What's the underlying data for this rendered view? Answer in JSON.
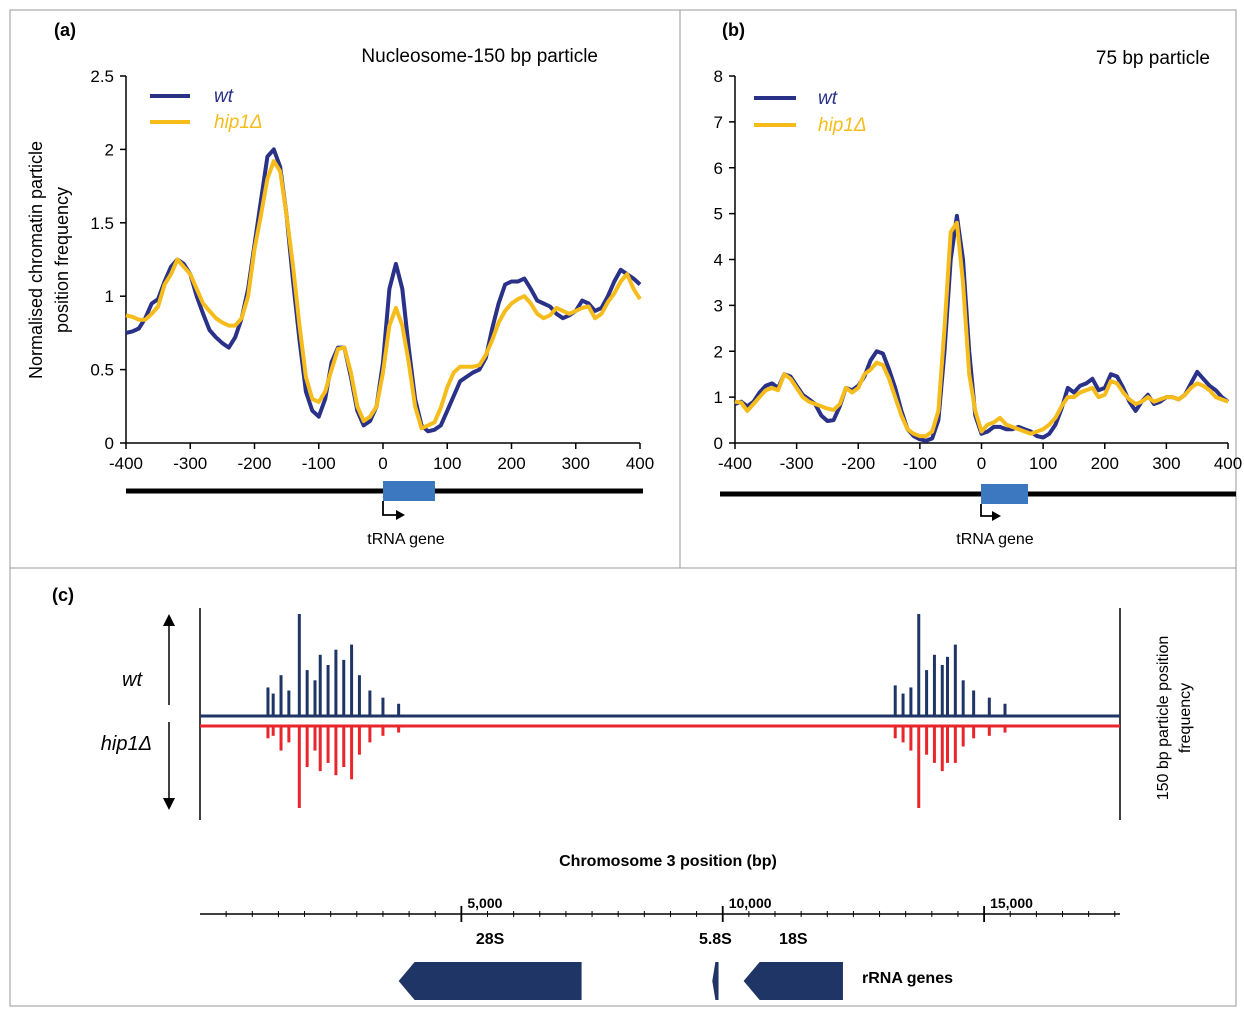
{
  "chart_data": [
    {
      "panel": "(a)",
      "type": "line",
      "title": "Nucleosome-150 bp particle",
      "ylabel": "Normalised chromatin particle position frequency",
      "ylabel_lines": [
        "Normalised chromatin particle",
        "position frequency"
      ],
      "xlim": [
        -400,
        400
      ],
      "ylim": [
        0,
        2.5
      ],
      "xticks": [
        "-400",
        "-300",
        "-200",
        "-100",
        "0",
        "100",
        "200",
        "300",
        "400"
      ],
      "yticks": [
        "0",
        "0.5",
        "1",
        "1.5",
        "2",
        "2.5"
      ],
      "x": [
        -400,
        -390,
        -380,
        -370,
        -360,
        -350,
        -340,
        -330,
        -320,
        -310,
        -300,
        -290,
        -280,
        -270,
        -260,
        -250,
        -240,
        -230,
        -220,
        -210,
        -200,
        -190,
        -180,
        -170,
        -160,
        -150,
        -140,
        -130,
        -120,
        -110,
        -100,
        -90,
        -80,
        -70,
        -60,
        -50,
        -40,
        -30,
        -20,
        -10,
        0,
        10,
        20,
        30,
        40,
        50,
        60,
        70,
        80,
        90,
        100,
        110,
        120,
        130,
        140,
        150,
        160,
        170,
        180,
        190,
        200,
        210,
        220,
        230,
        240,
        250,
        260,
        270,
        280,
        290,
        300,
        310,
        320,
        330,
        340,
        350,
        360,
        370,
        380,
        390,
        400
      ],
      "series": [
        {
          "name": "wt",
          "color": "#2a3188",
          "values": [
            0.75,
            0.76,
            0.78,
            0.85,
            0.95,
            0.98,
            1.1,
            1.2,
            1.25,
            1.22,
            1.15,
            1.0,
            0.88,
            0.77,
            0.72,
            0.68,
            0.65,
            0.72,
            0.85,
            1.05,
            1.35,
            1.65,
            1.95,
            2.0,
            1.88,
            1.55,
            1.1,
            0.7,
            0.35,
            0.22,
            0.18,
            0.3,
            0.55,
            0.65,
            0.65,
            0.45,
            0.22,
            0.12,
            0.15,
            0.25,
            0.55,
            1.05,
            1.22,
            1.05,
            0.65,
            0.3,
            0.12,
            0.08,
            0.09,
            0.12,
            0.22,
            0.32,
            0.42,
            0.45,
            0.48,
            0.5,
            0.58,
            0.78,
            0.95,
            1.08,
            1.1,
            1.1,
            1.12,
            1.05,
            0.97,
            0.95,
            0.93,
            0.88,
            0.85,
            0.87,
            0.9,
            0.97,
            0.95,
            0.9,
            0.92,
            1.0,
            1.1,
            1.18,
            1.15,
            1.12,
            1.08
          ]
        },
        {
          "name": "hip1Δ",
          "color": "#f5bc1c",
          "values": [
            0.87,
            0.86,
            0.84,
            0.84,
            0.88,
            0.93,
            1.08,
            1.15,
            1.25,
            1.2,
            1.15,
            1.05,
            0.95,
            0.9,
            0.85,
            0.82,
            0.8,
            0.8,
            0.85,
            1.0,
            1.32,
            1.55,
            1.8,
            1.92,
            1.85,
            1.55,
            1.2,
            0.8,
            0.45,
            0.3,
            0.28,
            0.35,
            0.5,
            0.64,
            0.65,
            0.48,
            0.25,
            0.15,
            0.18,
            0.25,
            0.48,
            0.8,
            0.92,
            0.8,
            0.55,
            0.25,
            0.1,
            0.12,
            0.14,
            0.24,
            0.38,
            0.48,
            0.52,
            0.52,
            0.52,
            0.53,
            0.6,
            0.7,
            0.82,
            0.9,
            0.95,
            0.98,
            1.0,
            0.95,
            0.88,
            0.85,
            0.87,
            0.92,
            0.9,
            0.88,
            0.9,
            0.92,
            0.93,
            0.85,
            0.88,
            0.96,
            1.02,
            1.1,
            1.15,
            1.05,
            0.98
          ]
        }
      ],
      "gene_label": "tRNA gene"
    },
    {
      "panel": "(b)",
      "type": "line",
      "title": "75 bp particle",
      "xlim": [
        -400,
        400
      ],
      "ylim": [
        0,
        8
      ],
      "xticks": [
        "-400",
        "-300",
        "-200",
        "-100",
        "0",
        "100",
        "200",
        "300",
        "400"
      ],
      "yticks": [
        "0",
        "1",
        "2",
        "3",
        "4",
        "5",
        "6",
        "7",
        "8"
      ],
      "x": [
        -400,
        -390,
        -380,
        -370,
        -360,
        -350,
        -340,
        -330,
        -320,
        -310,
        -300,
        -290,
        -280,
        -270,
        -260,
        -250,
        -240,
        -230,
        -220,
        -210,
        -200,
        -190,
        -180,
        -170,
        -160,
        -150,
        -140,
        -130,
        -120,
        -110,
        -100,
        -90,
        -80,
        -70,
        -60,
        -50,
        -40,
        -30,
        -20,
        -10,
        0,
        10,
        20,
        30,
        40,
        50,
        60,
        70,
        80,
        90,
        100,
        110,
        120,
        130,
        140,
        150,
        160,
        170,
        180,
        190,
        200,
        210,
        220,
        230,
        240,
        250,
        260,
        270,
        280,
        290,
        300,
        310,
        320,
        330,
        340,
        350,
        360,
        370,
        380,
        390,
        400
      ],
      "series": [
        {
          "name": "wt",
          "color": "#2a3188",
          "values": [
            0.85,
            0.9,
            0.8,
            0.9,
            1.1,
            1.25,
            1.3,
            1.2,
            1.5,
            1.45,
            1.25,
            1.05,
            0.95,
            0.85,
            0.6,
            0.48,
            0.5,
            0.8,
            1.2,
            1.15,
            1.25,
            1.45,
            1.8,
            2.0,
            1.95,
            1.6,
            1.2,
            0.7,
            0.3,
            0.15,
            0.08,
            0.05,
            0.1,
            0.5,
            2.0,
            4.0,
            4.95,
            4.0,
            2.0,
            0.6,
            0.2,
            0.25,
            0.35,
            0.35,
            0.3,
            0.3,
            0.35,
            0.3,
            0.25,
            0.15,
            0.12,
            0.2,
            0.4,
            0.75,
            1.2,
            1.1,
            1.25,
            1.3,
            1.4,
            1.15,
            1.2,
            1.5,
            1.45,
            1.2,
            0.9,
            0.7,
            0.9,
            1.05,
            0.85,
            0.9,
            1.0,
            1.0,
            0.95,
            1.05,
            1.3,
            1.55,
            1.4,
            1.25,
            1.15,
            1.0,
            0.9
          ]
        },
        {
          "name": "hip1Δ",
          "color": "#f5bc1c",
          "values": [
            0.9,
            0.88,
            0.7,
            0.85,
            1.0,
            1.15,
            1.2,
            1.15,
            1.5,
            1.4,
            1.2,
            1.0,
            0.9,
            0.85,
            0.8,
            0.75,
            0.72,
            0.85,
            1.2,
            1.1,
            1.2,
            1.5,
            1.6,
            1.75,
            1.7,
            1.4,
            1.0,
            0.6,
            0.3,
            0.2,
            0.15,
            0.15,
            0.25,
            0.7,
            2.5,
            4.6,
            4.8,
            3.5,
            1.5,
            0.7,
            0.25,
            0.4,
            0.45,
            0.55,
            0.4,
            0.35,
            0.3,
            0.25,
            0.2,
            0.25,
            0.3,
            0.4,
            0.55,
            0.8,
            1.0,
            1.0,
            1.1,
            1.15,
            1.2,
            1.0,
            1.05,
            1.35,
            1.3,
            1.1,
            0.95,
            0.85,
            0.9,
            1.0,
            0.9,
            0.95,
            1.0,
            1.0,
            0.95,
            1.05,
            1.2,
            1.3,
            1.25,
            1.15,
            1.0,
            0.95,
            0.9
          ]
        }
      ],
      "gene_label": "tRNA gene"
    },
    {
      "panel": "(c)",
      "type": "bar",
      "xlabel": "Chromosome 3 position (bp)",
      "ylabel": "150 bp particle position frequency",
      "ylabel_lines": [
        "150 bp particle position",
        "frequency"
      ],
      "track_labels": [
        "wt",
        "hip1Δ"
      ],
      "xlim": [
        0,
        17600
      ],
      "xticks": [
        "5,000",
        "10,000",
        "15,000"
      ],
      "tick_values": [
        5000,
        10000,
        15000
      ],
      "peaks": [
        {
          "pos": 1300,
          "wt": 0.28,
          "hip1": 0.15
        },
        {
          "pos": 1400,
          "wt": 0.22,
          "hip1": 0.12
        },
        {
          "pos": 1550,
          "wt": 0.4,
          "hip1": 0.3
        },
        {
          "pos": 1700,
          "wt": 0.25,
          "hip1": 0.2
        },
        {
          "pos": 1900,
          "wt": 1.0,
          "hip1": 1.0
        },
        {
          "pos": 2050,
          "wt": 0.45,
          "hip1": 0.5
        },
        {
          "pos": 2200,
          "wt": 0.35,
          "hip1": 0.3
        },
        {
          "pos": 2300,
          "wt": 0.6,
          "hip1": 0.55
        },
        {
          "pos": 2450,
          "wt": 0.5,
          "hip1": 0.45
        },
        {
          "pos": 2600,
          "wt": 0.65,
          "hip1": 0.6
        },
        {
          "pos": 2750,
          "wt": 0.55,
          "hip1": 0.5
        },
        {
          "pos": 2900,
          "wt": 0.7,
          "hip1": 0.65
        },
        {
          "pos": 3050,
          "wt": 0.4,
          "hip1": 0.35
        },
        {
          "pos": 3250,
          "wt": 0.25,
          "hip1": 0.2
        },
        {
          "pos": 3500,
          "wt": 0.18,
          "hip1": 0.12
        },
        {
          "pos": 3800,
          "wt": 0.12,
          "hip1": 0.08
        },
        {
          "pos": 13300,
          "wt": 0.3,
          "hip1": 0.15
        },
        {
          "pos": 13450,
          "wt": 0.22,
          "hip1": 0.2
        },
        {
          "pos": 13600,
          "wt": 0.28,
          "hip1": 0.3
        },
        {
          "pos": 13750,
          "wt": 1.0,
          "hip1": 1.0
        },
        {
          "pos": 13900,
          "wt": 0.45,
          "hip1": 0.35
        },
        {
          "pos": 14050,
          "wt": 0.6,
          "hip1": 0.45
        },
        {
          "pos": 14200,
          "wt": 0.5,
          "hip1": 0.55
        },
        {
          "pos": 14300,
          "wt": 0.58,
          "hip1": 0.45
        },
        {
          "pos": 14450,
          "wt": 0.7,
          "hip1": 0.45
        },
        {
          "pos": 14600,
          "wt": 0.35,
          "hip1": 0.25
        },
        {
          "pos": 14800,
          "wt": 0.25,
          "hip1": 0.15
        },
        {
          "pos": 15100,
          "wt": 0.18,
          "hip1": 0.12
        },
        {
          "pos": 15400,
          "wt": 0.12,
          "hip1": 0.08
        }
      ],
      "colors": {
        "wt": "#1f3566",
        "hip1": "#e8262b"
      },
      "genes": [
        {
          "label": "28S",
          "start": 3800,
          "end": 7300,
          "strand": "-"
        },
        {
          "label": "5.8S",
          "start": 9800,
          "end": 9920,
          "strand": "-"
        },
        {
          "label": "18S",
          "start": 10400,
          "end": 12300,
          "strand": "-"
        }
      ],
      "genes_label": "rRNA genes"
    }
  ]
}
